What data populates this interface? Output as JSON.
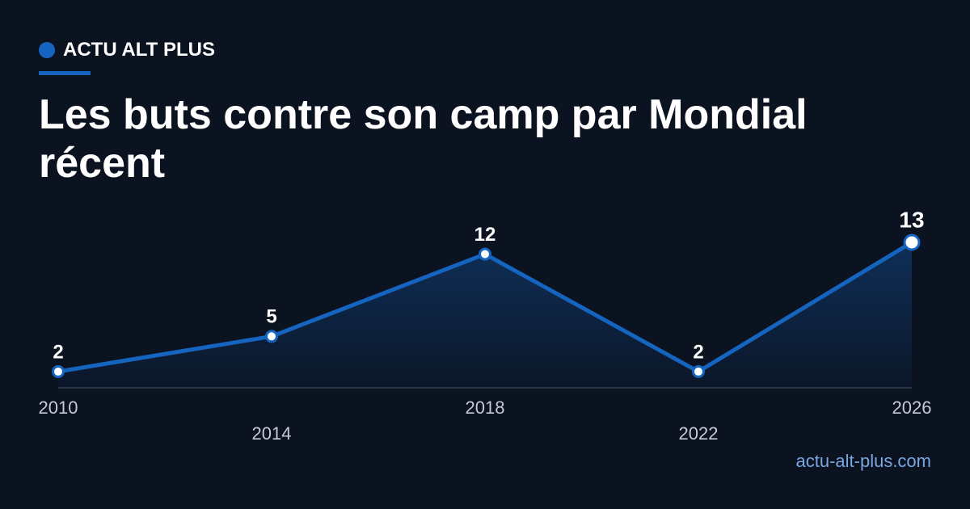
{
  "chart_data": {
    "type": "line",
    "brand": "ACTU ALT PLUS",
    "title": "Les buts contre son camp par Mondial récent",
    "x": [
      2010,
      2014,
      2018,
      2022,
      2026
    ],
    "values": [
      2,
      5,
      12,
      2,
      13
    ],
    "color": "#1565c0",
    "source": "actu-alt-plus.com"
  }
}
